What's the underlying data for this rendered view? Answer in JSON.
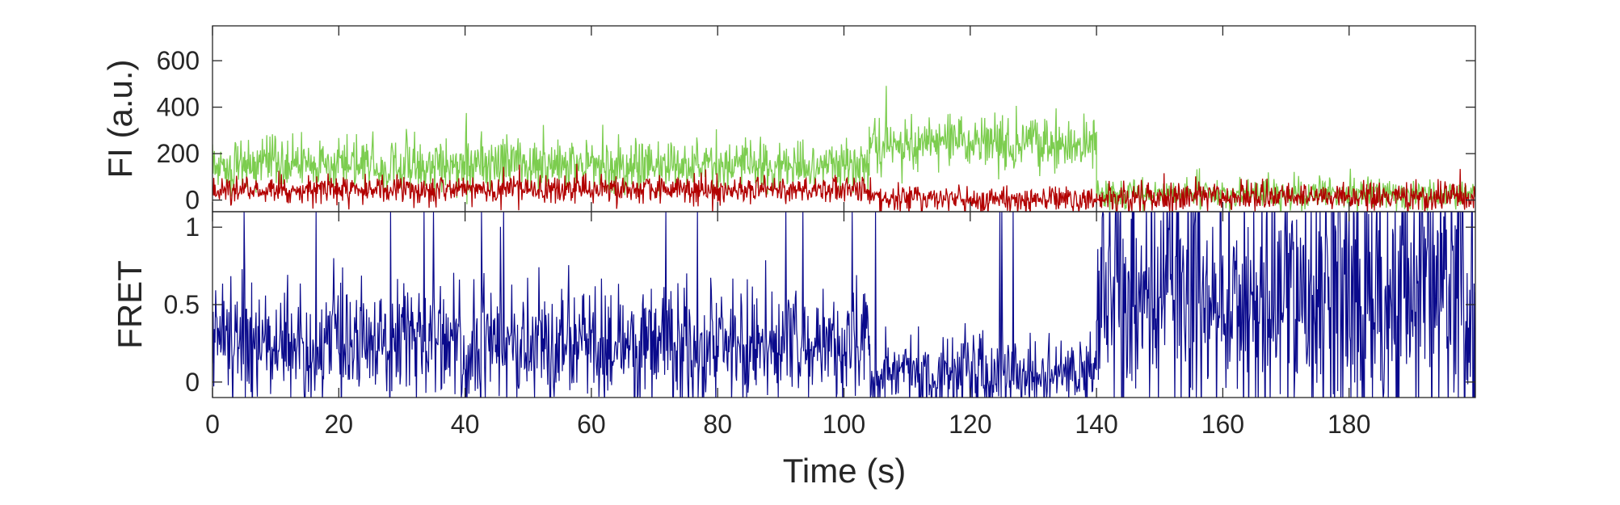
{
  "chart_data": [
    {
      "id": "fluorescence",
      "type": "line",
      "title": "",
      "xlabel": "",
      "ylabel": "FI (a.u.)",
      "xlim": [
        0,
        200
      ],
      "ylim": [
        -50,
        750
      ],
      "xticks": [
        0,
        20,
        40,
        60,
        80,
        100,
        120,
        140,
        160,
        180
      ],
      "yticks": [
        0,
        200,
        400,
        600
      ],
      "grid": false,
      "dt": 0.1,
      "segments": [
        {
          "t": [
            0,
            104
          ],
          "series": "donor",
          "mean": 150,
          "noise": 55
        },
        {
          "t": [
            104,
            140
          ],
          "series": "donor",
          "mean": 245,
          "noise": 55
        },
        {
          "t": [
            140,
            200
          ],
          "series": "donor",
          "mean": 25,
          "noise": 32
        },
        {
          "t": [
            0,
            104
          ],
          "series": "acceptor",
          "mean": 45,
          "noise": 30
        },
        {
          "t": [
            104,
            140
          ],
          "series": "acceptor",
          "mean": 5,
          "noise": 30
        },
        {
          "t": [
            140,
            200
          ],
          "series": "acceptor",
          "mean": 15,
          "noise": 33
        }
      ],
      "series": [
        {
          "name": "",
          "key": "donor",
          "color": "#7ccd4f"
        },
        {
          "name": "",
          "key": "acceptor",
          "color": "#b20000"
        }
      ]
    },
    {
      "id": "fret",
      "type": "line",
      "title": "",
      "xlabel": "Time (s)",
      "ylabel": "FRET",
      "xlim": [
        0,
        200
      ],
      "ylim": [
        -0.1,
        1.1
      ],
      "xticks": [
        0,
        20,
        40,
        60,
        80,
        100,
        120,
        140,
        160,
        180
      ],
      "yticks": [
        0,
        0.5,
        1
      ],
      "grid": false,
      "dt": 0.1,
      "segments": [
        {
          "t": [
            0,
            104
          ],
          "mean": 0.25,
          "noise": 0.2
        },
        {
          "t": [
            104,
            140
          ],
          "mean": 0.07,
          "noise": 0.12
        },
        {
          "t": [
            140,
            200
          ],
          "mean": 0.55,
          "noise": 0.45
        }
      ],
      "series": [
        {
          "name": "",
          "key": "fret",
          "color": "#0a0a8c"
        }
      ]
    }
  ]
}
